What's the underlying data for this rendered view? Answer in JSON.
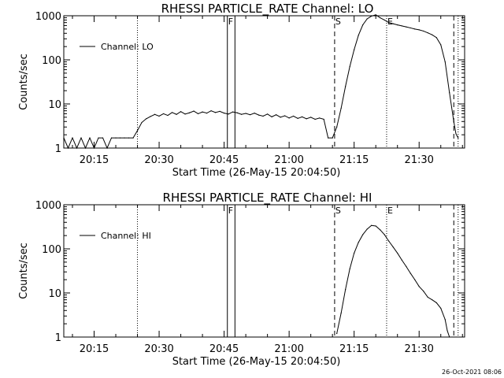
{
  "timestamp": "26-Oct-2021 08:06",
  "chart_data": [
    {
      "type": "line",
      "title": "RHESSI PARTICLE_RATE Channel: LO",
      "xlabel": "Start Time (26-May-15 20:04:50)",
      "ylabel": "Counts/sec",
      "yscale": "log",
      "xlim": [
        "20:08:00",
        "21:40:30"
      ],
      "ylim": [
        1,
        1000
      ],
      "xticks": [
        "20:15",
        "20:30",
        "20:45",
        "21:00",
        "21:15",
        "21:30"
      ],
      "yticks": [
        "1",
        "10",
        "100",
        "1000"
      ],
      "markers": [
        {
          "label": "F",
          "time": "20:45:45",
          "style": "solid"
        },
        {
          "label": "",
          "time": "20:47:30",
          "style": "solid"
        },
        {
          "label": "S",
          "time": "21:10:30",
          "style": "dashed"
        },
        {
          "label": "E",
          "time": "21:22:30",
          "style": "dotted"
        },
        {
          "label": "",
          "time": "21:38:00",
          "style": "dashed"
        },
        {
          "label": "",
          "time": "21:39:00",
          "style": "dotted"
        },
        {
          "label": "",
          "time": "20:25:00",
          "style": "dotted"
        }
      ],
      "series": [
        {
          "name": "Channel: LO",
          "x": [
            "20:08:00",
            "20:09:00",
            "20:10:00",
            "20:11:00",
            "20:12:00",
            "20:13:00",
            "20:14:00",
            "20:15:00",
            "20:16:00",
            "20:17:00",
            "20:18:00",
            "20:19:00",
            "20:20:00",
            "20:21:00",
            "20:22:00",
            "20:23:00",
            "20:24:00",
            "20:25:00",
            "20:26:00",
            "20:27:00",
            "20:28:00",
            "20:29:00",
            "20:30:00",
            "20:31:00",
            "20:32:00",
            "20:33:00",
            "20:34:00",
            "20:35:00",
            "20:36:00",
            "20:37:00",
            "20:38:00",
            "20:39:00",
            "20:40:00",
            "20:41:00",
            "20:42:00",
            "20:43:00",
            "20:44:00",
            "20:45:00",
            "20:46:00",
            "20:47:00",
            "20:48:00",
            "20:49:00",
            "20:50:00",
            "20:51:00",
            "20:52:00",
            "20:53:00",
            "20:54:00",
            "20:55:00",
            "20:56:00",
            "20:57:00",
            "20:58:00",
            "20:59:00",
            "21:00:00",
            "21:01:00",
            "21:02:00",
            "21:03:00",
            "21:04:00",
            "21:05:00",
            "21:06:00",
            "21:07:00",
            "21:08:00",
            "21:09:00",
            "21:10:00",
            "21:11:00",
            "21:12:00",
            "21:13:00",
            "21:14:00",
            "21:15:00",
            "21:16:00",
            "21:17:00",
            "21:18:00",
            "21:19:00",
            "21:20:00",
            "21:21:00",
            "21:22:00",
            "21:23:00",
            "21:24:00",
            "21:25:00",
            "21:26:00",
            "21:27:00",
            "21:28:00",
            "21:29:00",
            "21:30:00",
            "21:31:00",
            "21:32:00",
            "21:33:00",
            "21:34:00",
            "21:35:00",
            "21:36:00",
            "21:37:00",
            "21:38:00",
            "21:38:30",
            "21:39:00"
          ],
          "values": [
            1.7,
            1,
            1.7,
            1,
            1.7,
            1,
            1.7,
            1,
            1.7,
            1.7,
            1,
            1.7,
            1.7,
            1.7,
            1.7,
            1.7,
            1.7,
            2.5,
            3.8,
            4.6,
            5.2,
            5.8,
            5.3,
            6.0,
            5.5,
            6.4,
            5.8,
            6.7,
            5.9,
            6.3,
            6.9,
            6.0,
            6.6,
            6.2,
            7.0,
            6.4,
            6.8,
            6.2,
            5.9,
            6.6,
            6.3,
            5.8,
            6.1,
            5.7,
            6.2,
            5.6,
            5.3,
            5.9,
            5.1,
            5.7,
            5.0,
            5.4,
            4.8,
            5.3,
            4.7,
            5.1,
            4.6,
            5.0,
            4.5,
            4.8,
            4.5,
            1.7,
            1.7,
            3.0,
            8,
            25,
            70,
            170,
            360,
            620,
            850,
            980,
            1050,
            900,
            800,
            700,
            660,
            620,
            590,
            560,
            530,
            500,
            480,
            450,
            410,
            370,
            320,
            220,
            90,
            18,
            4,
            2.1,
            1.7
          ]
        }
      ]
    },
    {
      "type": "line",
      "title": "RHESSI PARTICLE_RATE Channel: HI",
      "xlabel": "Start Time (26-May-15 20:04:50)",
      "ylabel": "Counts/sec",
      "yscale": "log",
      "xlim": [
        "20:08:00",
        "21:40:30"
      ],
      "ylim": [
        1,
        1000
      ],
      "xticks": [
        "20:15",
        "20:30",
        "20:45",
        "21:00",
        "21:15",
        "21:30"
      ],
      "yticks": [
        "1",
        "10",
        "100",
        "1000"
      ],
      "markers": [
        {
          "label": "F",
          "time": "20:45:45",
          "style": "solid"
        },
        {
          "label": "",
          "time": "20:47:30",
          "style": "solid"
        },
        {
          "label": "S",
          "time": "21:10:30",
          "style": "dashed"
        },
        {
          "label": "E",
          "time": "21:22:30",
          "style": "dotted"
        },
        {
          "label": "",
          "time": "21:38:00",
          "style": "dashed"
        },
        {
          "label": "",
          "time": "21:39:00",
          "style": "dotted"
        },
        {
          "label": "",
          "time": "20:25:00",
          "style": "dotted"
        }
      ],
      "series": [
        {
          "name": "Channel: HI",
          "x": [
            "21:11:00",
            "21:12:00",
            "21:13:00",
            "21:14:00",
            "21:15:00",
            "21:16:00",
            "21:17:00",
            "21:18:00",
            "21:19:00",
            "21:20:00",
            "21:21:00",
            "21:22:00",
            "21:23:00",
            "21:24:00",
            "21:25:00",
            "21:26:00",
            "21:27:00",
            "21:28:00",
            "21:29:00",
            "21:30:00",
            "21:31:00",
            "21:32:00",
            "21:33:00",
            "21:34:00",
            "21:35:00",
            "21:36:00",
            "21:36:30",
            "21:37:00"
          ],
          "values": [
            1.2,
            3.5,
            12,
            35,
            80,
            140,
            210,
            280,
            340,
            330,
            270,
            210,
            150,
            110,
            80,
            56,
            40,
            28,
            20,
            14,
            11,
            8,
            7,
            6,
            4.5,
            2.5,
            1.4,
            1
          ]
        }
      ]
    }
  ]
}
